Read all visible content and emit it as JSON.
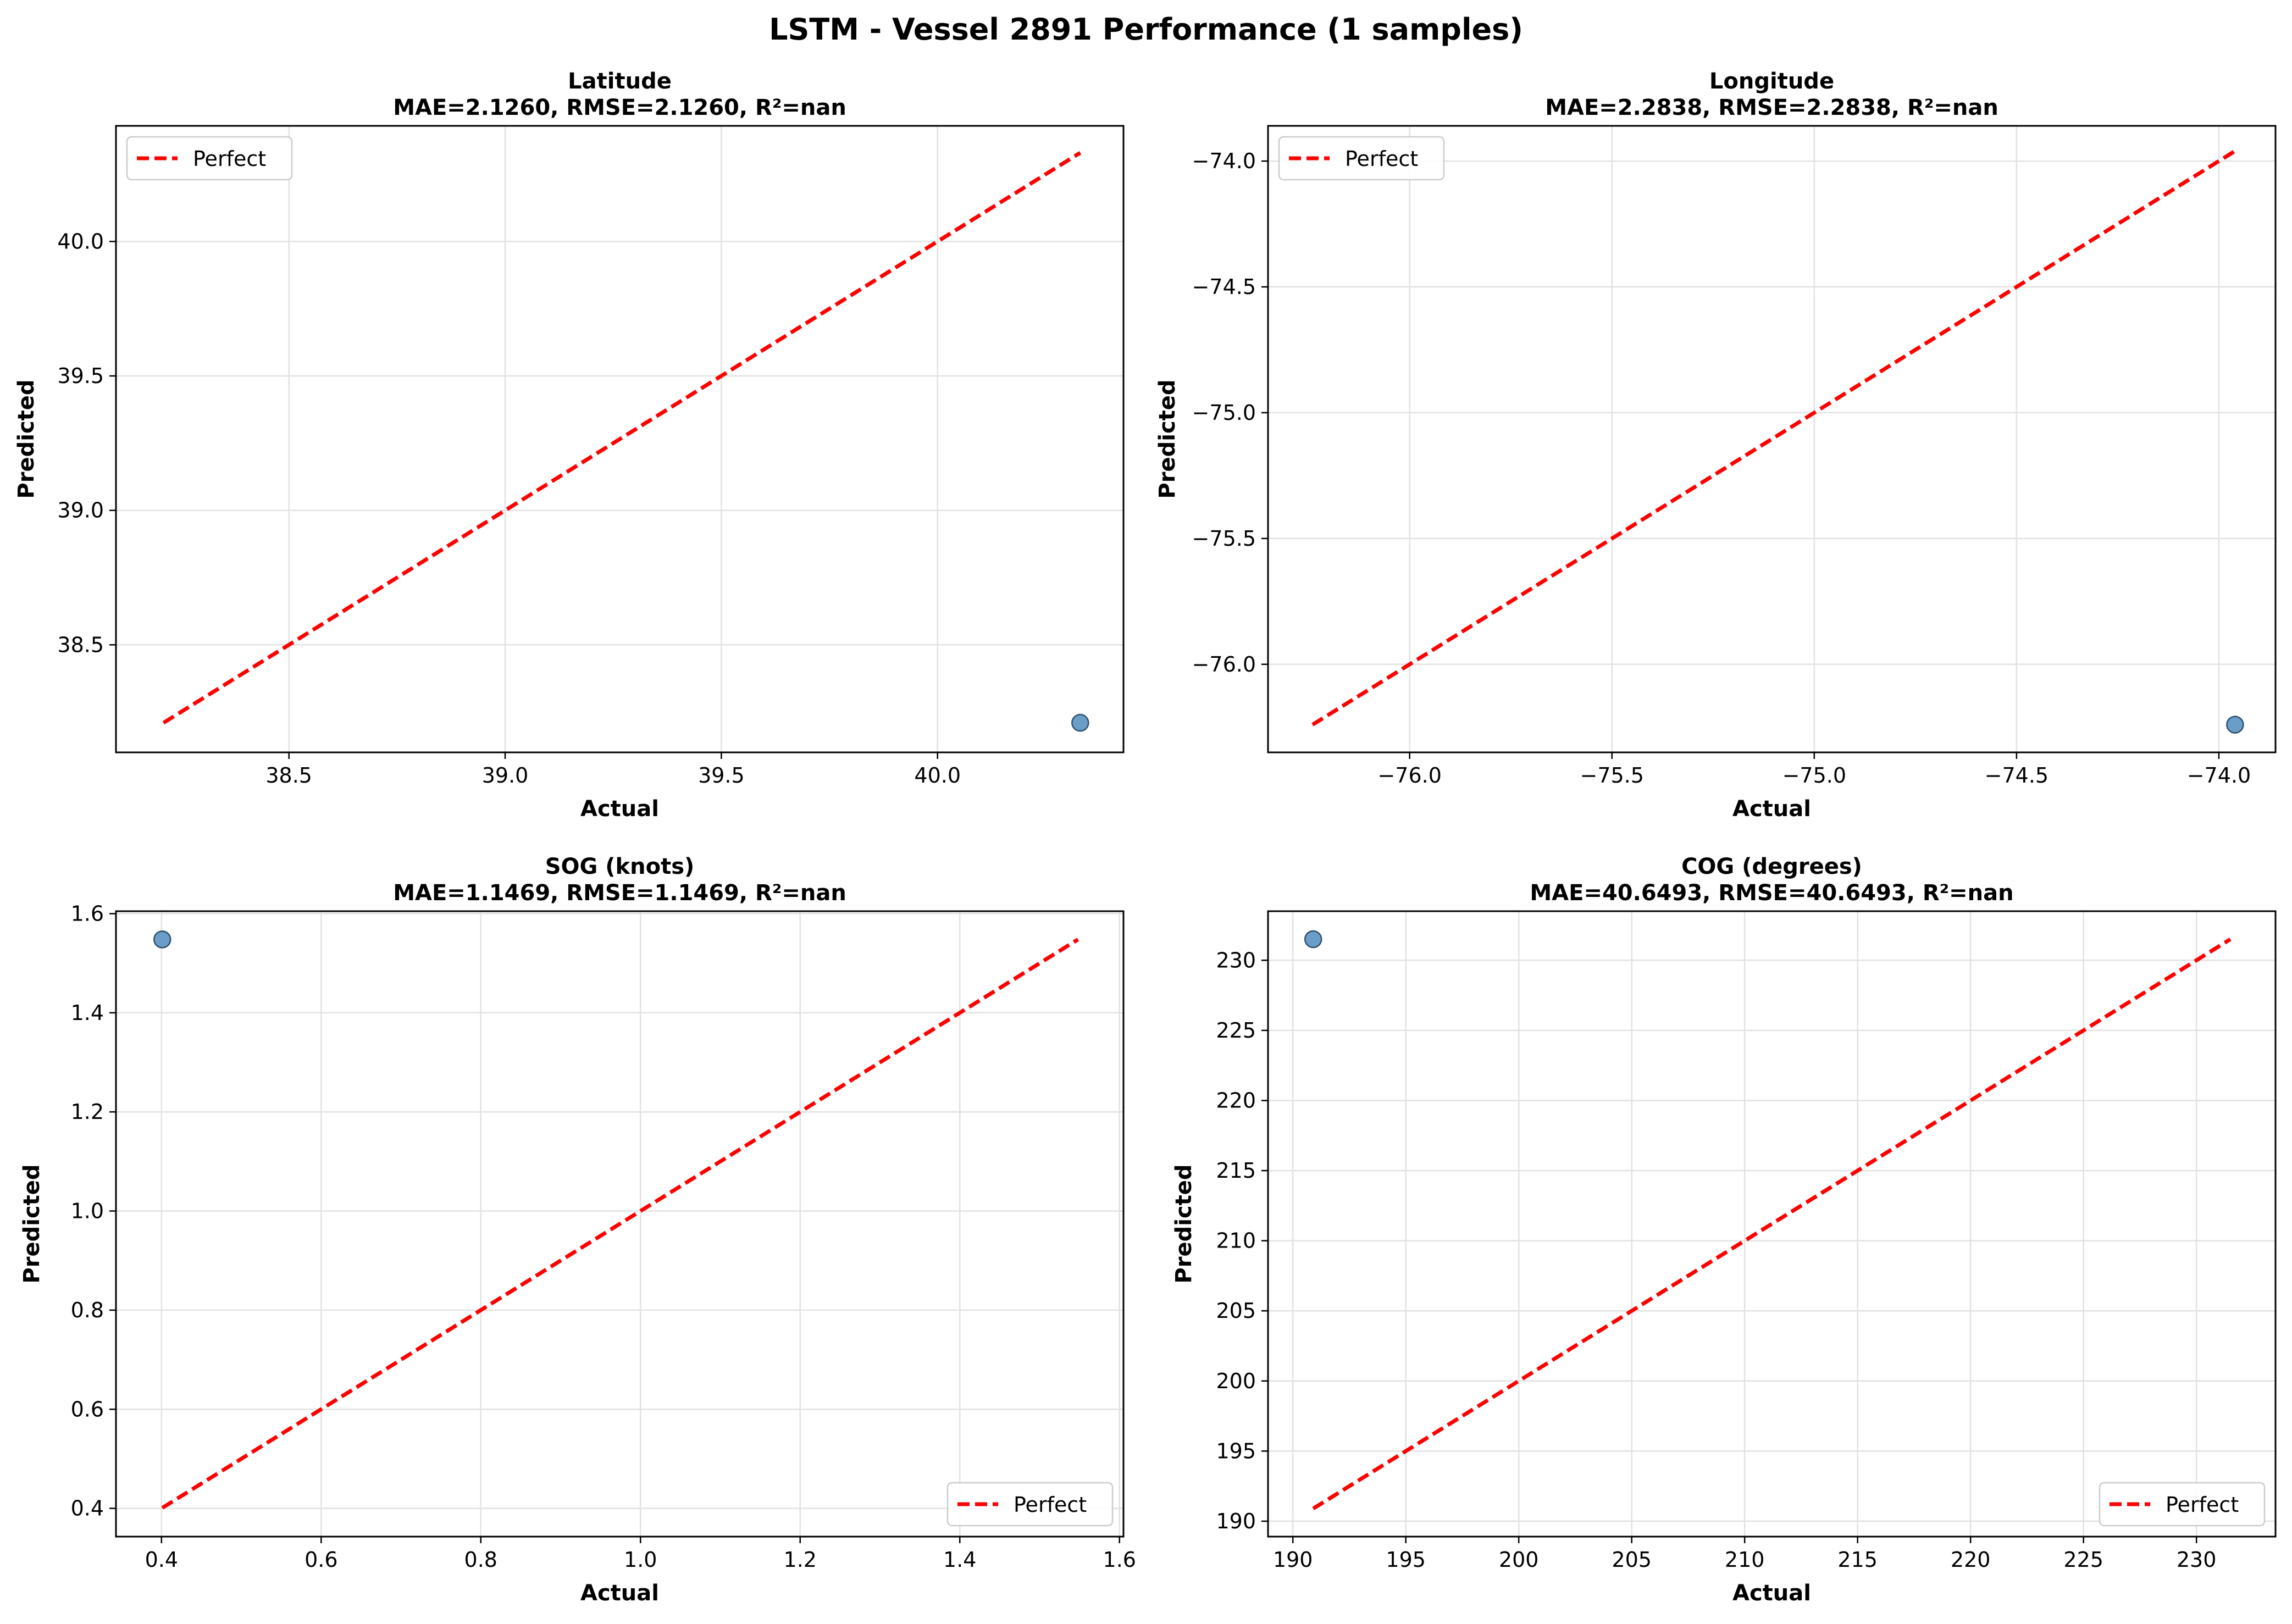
{
  "figure": {
    "title": "LSTM - Vessel 2891 Performance (1 samples)"
  },
  "chart_data": [
    {
      "type": "scatter",
      "title": "Latitude",
      "subtitle": "MAE=2.1260, RMSE=2.1260, R²=nan",
      "xlabel": "Actual",
      "ylabel": "Predicted",
      "xlim": [
        38.1,
        40.43
      ],
      "ylim": [
        38.1,
        40.43
      ],
      "xticks": [
        38.5,
        39.0,
        39.5,
        40.0
      ],
      "xtick_labels": [
        "38.5",
        "39.0",
        "39.5",
        "40.0"
      ],
      "yticks": [
        38.5,
        39.0,
        39.5,
        40.0
      ],
      "ytick_labels": [
        "38.5",
        "39.0",
        "39.5",
        "40.0"
      ],
      "grid": true,
      "legend_position": "top-left",
      "series": [
        {
          "name": "Perfect",
          "kind": "line",
          "color": "#ff0000",
          "dash": "dashed",
          "x": [
            38.21,
            40.33
          ],
          "y": [
            38.21,
            40.33
          ]
        },
        {
          "kind": "scatter",
          "color": "#6a9dc8",
          "x": [
            40.33
          ],
          "y": [
            38.21
          ]
        }
      ]
    },
    {
      "type": "scatter",
      "title": "Longitude",
      "subtitle": "MAE=2.2838, RMSE=2.2838, R²=nan",
      "xlabel": "Actual",
      "ylabel": "Predicted",
      "xlim": [
        -76.35,
        -73.86
      ],
      "ylim": [
        -76.35,
        -73.86
      ],
      "xticks": [
        -76.0,
        -75.5,
        -75.0,
        -74.5,
        -74.0
      ],
      "xtick_labels": [
        "−76.0",
        "−75.5",
        "−75.0",
        "−74.5",
        "−74.0"
      ],
      "yticks": [
        -76.0,
        -75.5,
        -75.0,
        -74.5,
        -74.0
      ],
      "ytick_labels": [
        "−76.0",
        "−75.5",
        "−75.0",
        "−74.5",
        "−74.0"
      ],
      "grid": true,
      "legend_position": "top-left",
      "series": [
        {
          "name": "Perfect",
          "kind": "line",
          "color": "#ff0000",
          "dash": "dashed",
          "x": [
            -76.24,
            -73.96
          ],
          "y": [
            -76.24,
            -73.96
          ]
        },
        {
          "kind": "scatter",
          "color": "#6a9dc8",
          "x": [
            -73.96
          ],
          "y": [
            -76.24
          ]
        }
      ]
    },
    {
      "type": "scatter",
      "title": "SOG (knots)",
      "subtitle": "MAE=1.1469, RMSE=1.1469, R²=nan",
      "xlabel": "Actual",
      "ylabel": "Predicted",
      "xlim": [
        0.343,
        1.605
      ],
      "ylim": [
        0.343,
        1.605
      ],
      "xticks": [
        0.4,
        0.6,
        0.8,
        1.0,
        1.2,
        1.4,
        1.6
      ],
      "xtick_labels": [
        "0.4",
        "0.6",
        "0.8",
        "1.0",
        "1.2",
        "1.4",
        "1.6"
      ],
      "yticks": [
        0.4,
        0.6,
        0.8,
        1.0,
        1.2,
        1.4,
        1.6
      ],
      "ytick_labels": [
        "0.4",
        "0.6",
        "0.8",
        "1.0",
        "1.2",
        "1.4",
        "1.6"
      ],
      "grid": true,
      "legend_position": "bottom-right",
      "series": [
        {
          "name": "Perfect",
          "kind": "line",
          "color": "#ff0000",
          "dash": "dashed",
          "x": [
            0.401,
            1.548
          ],
          "y": [
            0.401,
            1.548
          ]
        },
        {
          "kind": "scatter",
          "color": "#6a9dc8",
          "x": [
            0.401
          ],
          "y": [
            1.548
          ]
        }
      ]
    },
    {
      "type": "scatter",
      "title": "COG (degrees)",
      "subtitle": "MAE=40.6493, RMSE=40.6493, R²=nan",
      "xlabel": "Actual",
      "ylabel": "Predicted",
      "xlim": [
        188.9,
        233.5
      ],
      "ylim": [
        188.9,
        233.5
      ],
      "xticks": [
        190,
        195,
        200,
        205,
        210,
        215,
        220,
        225,
        230
      ],
      "xtick_labels": [
        "190",
        "195",
        "200",
        "205",
        "210",
        "215",
        "220",
        "225",
        "230"
      ],
      "yticks": [
        190,
        195,
        200,
        205,
        210,
        215,
        220,
        225,
        230
      ],
      "ytick_labels": [
        "190",
        "195",
        "200",
        "205",
        "210",
        "215",
        "220",
        "225",
        "230"
      ],
      "grid": true,
      "legend_position": "bottom-right",
      "series": [
        {
          "name": "Perfect",
          "kind": "line",
          "color": "#ff0000",
          "dash": "dashed",
          "x": [
            190.9,
            231.5
          ],
          "y": [
            190.9,
            231.5
          ]
        },
        {
          "kind": "scatter",
          "color": "#6a9dc8",
          "x": [
            190.9
          ],
          "y": [
            231.5
          ]
        }
      ]
    }
  ]
}
